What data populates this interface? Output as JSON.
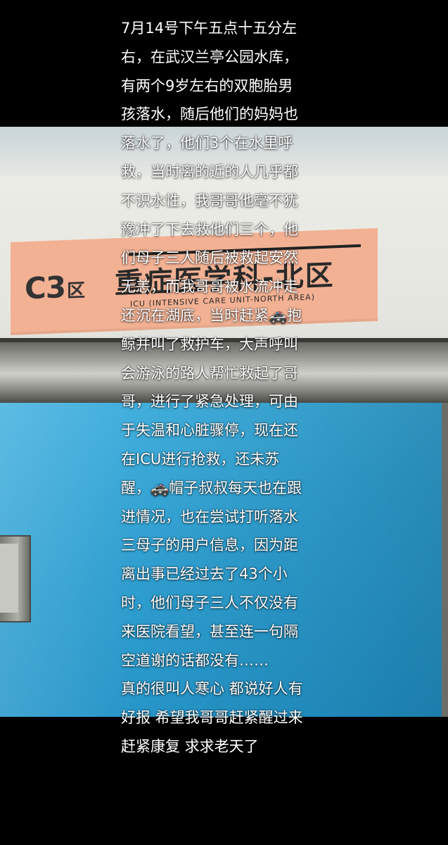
{
  "background": {
    "sign": {
      "code": "C3",
      "code_suffix": "区",
      "title": "重症医学科-北区",
      "subtitle": "ICU (INTENSIVE CARE UNIT-NORTH AREA)"
    }
  },
  "overlay_text": {
    "lines": [
      "7月14号下午五点十五分左",
      "右，在武汉兰亭公园水库，",
      "有两个9岁左右的双胞胎男",
      "孩落水，随后他们的妈妈也",
      "落水了，他们3个在水里呼",
      "救，当时离的近的人几乎都",
      "不识水性，我哥哥他毫不犹",
      "豫冲了下去救他们三个，他",
      "们母子三人随后被救起安然",
      "无恙，而我哥哥被水流冲走",
      "还沉在湖底，当时赶紧🚓抱",
      "鲸并叫了救护车，大声呼叫",
      "会游泳的路人帮忙救起了哥",
      "哥，进行了紧急处理，可由",
      "于失温和心脏骤停，现在还",
      "在ICU进行抢救，还未苏",
      "醒，🚓帽子叔叔每天也在跟",
      "进情况，也在尝试打听落水",
      "三母子的用户信息，因为距",
      "离出事已经过去了43个小",
      "时，他们母子三人不仅没有",
      "来医院看望，甚至连一句隔",
      "空道谢的话都没有……",
      "真的很叫人寒心 都说好人有",
      "好报 希望我哥哥赶紧醒过来",
      "赶紧康复  求求老天了"
    ]
  }
}
